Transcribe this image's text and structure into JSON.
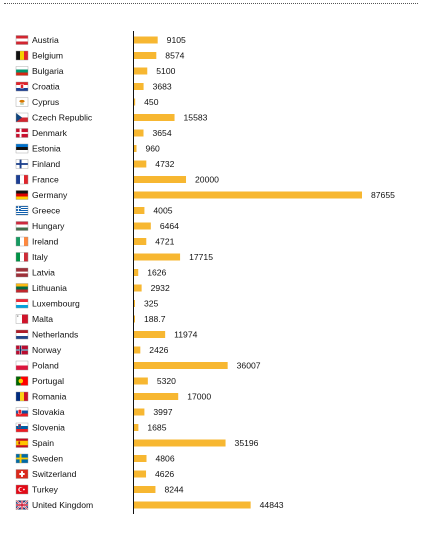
{
  "chart_data": {
    "type": "bar",
    "orientation": "horizontal",
    "title": "",
    "xlabel": "",
    "ylabel": "",
    "bar_color": "#f7b731",
    "xlim": [
      0,
      87655
    ],
    "grid": false,
    "categories": [
      "Austria",
      "Belgium",
      "Bulgaria",
      "Croatia",
      "Cyprus",
      "Czech Republic",
      "Denmark",
      "Estonia",
      "Finland",
      "France",
      "Germany",
      "Greece",
      "Hungary",
      "Ireland",
      "Italy",
      "Latvia",
      "Lithuania",
      "Luxembourg",
      "Malta",
      "Netherlands",
      "Norway",
      "Poland",
      "Portugal",
      "Romania",
      "Slovakia",
      "Slovenia",
      "Spain",
      "Sweden",
      "Switzerland",
      "Turkey",
      "United Kingdom"
    ],
    "values": [
      9105,
      8574,
      5100,
      3683,
      450,
      15583,
      3654,
      960,
      4732,
      20000,
      87655,
      4005,
      6464,
      4721,
      17715,
      1626,
      2932,
      325,
      188.7,
      11974,
      2426,
      36007,
      5320,
      17000,
      3997,
      1685,
      35196,
      4806,
      4626,
      8244,
      44843
    ],
    "value_labels": [
      "9105",
      "8574",
      "5100",
      "3683",
      "450",
      "15583",
      "3654",
      "960",
      "4732",
      "20000",
      "87655",
      "4005",
      "6464",
      "4721",
      "17715",
      "1626",
      "2932",
      "325",
      "188.7",
      "11974",
      "2426",
      "36007",
      "5320",
      "17000",
      "3997",
      "1685",
      "35196",
      "4806",
      "4626",
      "8244",
      "44843"
    ],
    "flag_icons": [
      "flag-austria-icon",
      "flag-belgium-icon",
      "flag-bulgaria-icon",
      "flag-croatia-icon",
      "flag-cyprus-icon",
      "flag-czech-republic-icon",
      "flag-denmark-icon",
      "flag-estonia-icon",
      "flag-finland-icon",
      "flag-france-icon",
      "flag-germany-icon",
      "flag-greece-icon",
      "flag-hungary-icon",
      "flag-ireland-icon",
      "flag-italy-icon",
      "flag-latvia-icon",
      "flag-lithuania-icon",
      "flag-luxembourg-icon",
      "flag-malta-icon",
      "flag-netherlands-icon",
      "flag-norway-icon",
      "flag-poland-icon",
      "flag-portugal-icon",
      "flag-romania-icon",
      "flag-slovakia-icon",
      "flag-slovenia-icon",
      "flag-spain-icon",
      "flag-sweden-icon",
      "flag-switzerland-icon",
      "flag-turkey-icon",
      "flag-united-kingdom-icon"
    ]
  }
}
